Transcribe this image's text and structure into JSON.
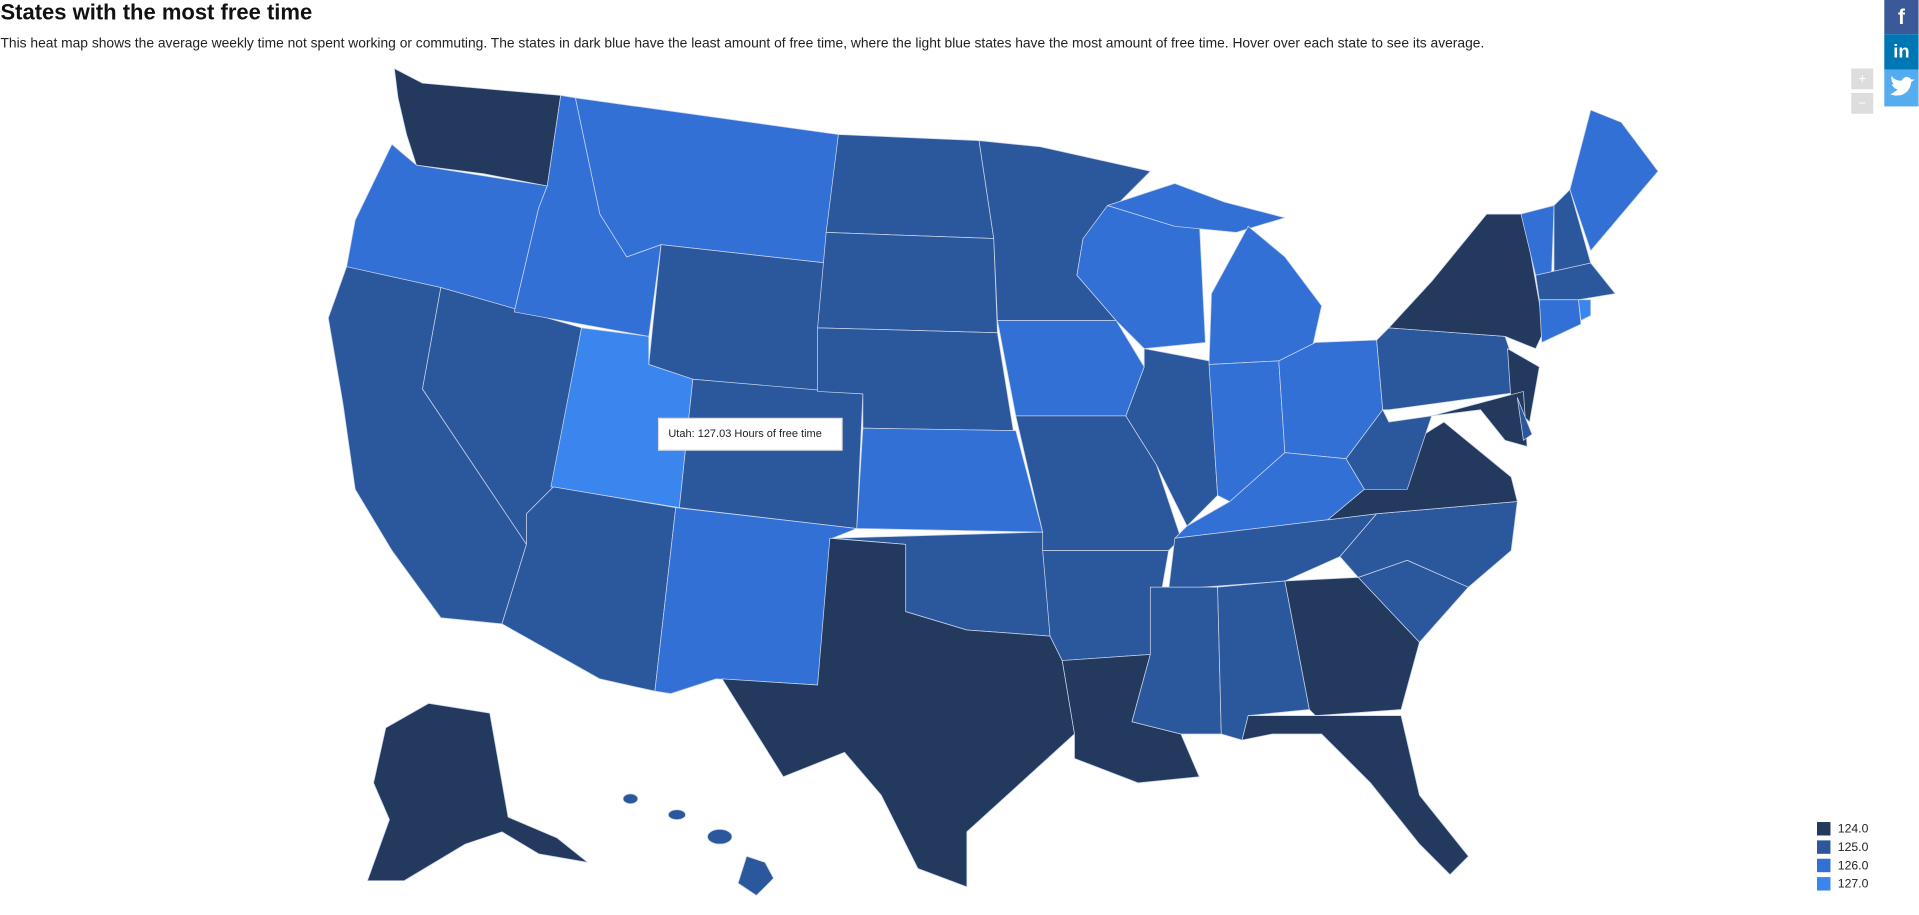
{
  "header": {
    "title": "States with the most free time",
    "description": "This heat map shows the average weekly time not spent working or commuting. The states in dark blue have the least amount of free time, where the light blue states have the most amount of free time. Hover over each state to see its average."
  },
  "tooltip": {
    "text": "Utah: 127.03 Hours of free time"
  },
  "legend": {
    "items": [
      {
        "value": 124,
        "label": "124.0",
        "color": "#24395e"
      },
      {
        "value": 125,
        "label": "125.0",
        "color": "#2b579c"
      },
      {
        "value": 126,
        "label": "126.0",
        "color": "#3270d5"
      },
      {
        "value": 127,
        "label": "127.0",
        "color": "#3b85ee"
      }
    ]
  },
  "controls": {
    "zoom_in": "+",
    "zoom_out": "−"
  },
  "share": {
    "facebook": "f",
    "linkedin": "in"
  }
}
